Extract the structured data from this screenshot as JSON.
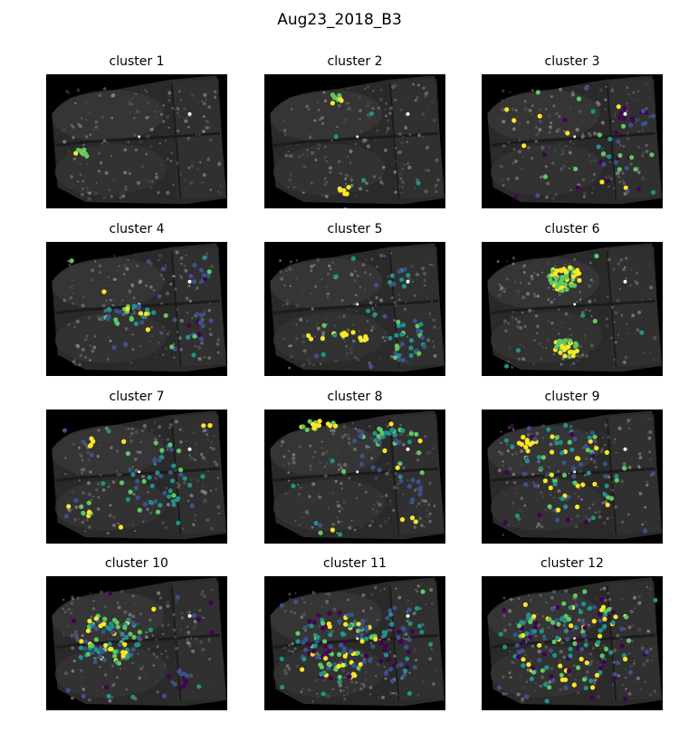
{
  "figure_title": "Aug23_2018_B3",
  "colormap": [
    "#440154",
    "#3b528b",
    "#21918c",
    "#5ec962",
    "#fde725"
  ],
  "panels": [
    {
      "title": "cluster 1"
    },
    {
      "title": "cluster 2"
    },
    {
      "title": "cluster 3"
    },
    {
      "title": "cluster 4"
    },
    {
      "title": "cluster 5"
    },
    {
      "title": "cluster 6"
    },
    {
      "title": "cluster 7"
    },
    {
      "title": "cluster 8"
    },
    {
      "title": "cluster 9"
    },
    {
      "title": "cluster 10"
    },
    {
      "title": "cluster 11"
    },
    {
      "title": "cluster 12"
    }
  ]
}
